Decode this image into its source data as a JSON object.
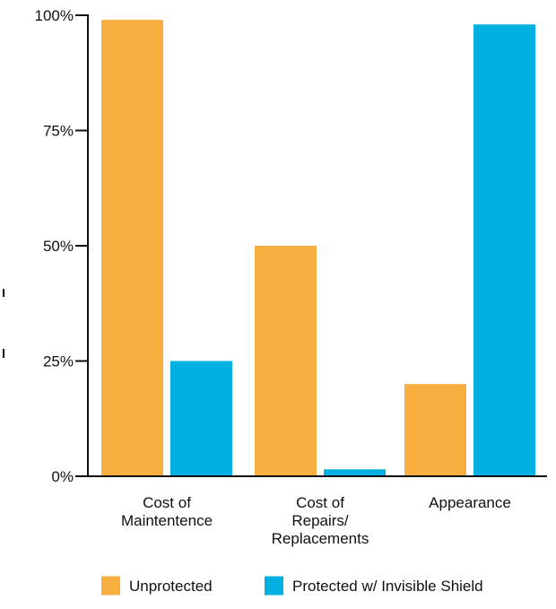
{
  "chart_data": {
    "type": "bar",
    "title": "",
    "xlabel": "",
    "ylabel": "",
    "categories": [
      [
        "Cost of",
        "Maintentence"
      ],
      [
        "Cost of",
        "Repairs/",
        "Replacements"
      ],
      [
        "Appearance"
      ]
    ],
    "series": [
      {
        "name": "Unprotected",
        "color": "#F9AE40",
        "values": [
          99,
          50,
          20
        ]
      },
      {
        "name": "Protected w/ Invisible Shield",
        "color": "#00B0E0",
        "values": [
          25,
          1.5,
          98
        ]
      }
    ],
    "ylim": [
      0,
      100
    ],
    "yticks": [
      0,
      25,
      50,
      75,
      100
    ],
    "ytick_labels": [
      "0%",
      "25%",
      "50%",
      "75%",
      "100%"
    ],
    "grid": false,
    "legend_position": "bottom-right",
    "axis_color": "#111111"
  }
}
